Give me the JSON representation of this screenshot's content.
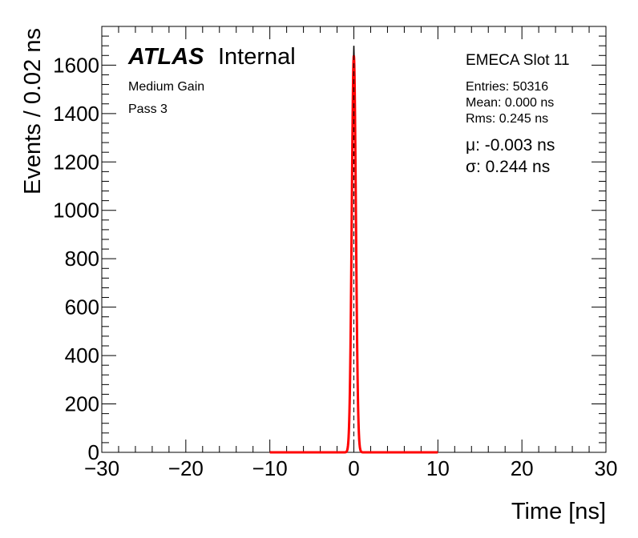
{
  "header": {
    "atlas": "ATLAS",
    "internal": "Internal",
    "line1": "Medium Gain",
    "line2": "Pass 3"
  },
  "stats": {
    "slot": "EMECA Slot 11",
    "entries": "Entries: 50316",
    "mean": "Mean: 0.000 ns",
    "rms": "Rms: 0.245 ns",
    "mu": "μ: -0.003 ns",
    "sigma": "σ: 0.244 ns"
  },
  "colors": {
    "fit": "#ff0000",
    "hist": "#000000"
  },
  "chart_data": {
    "type": "line",
    "xlabel": "Time [ns]",
    "ylabel": "Events / 0.02 ns",
    "xlim": [
      -30,
      30
    ],
    "ylim": [
      0,
      1760
    ],
    "x_ticks": [
      -30,
      -20,
      -10,
      0,
      10,
      20,
      30
    ],
    "x_tick_labels": [
      "−30",
      "−20",
      "−10",
      "0",
      "10",
      "20",
      "30"
    ],
    "y_ticks": [
      0,
      200,
      400,
      600,
      800,
      1000,
      1200,
      1400,
      1600
    ],
    "y_tick_labels": [
      "0",
      "200",
      "400",
      "600",
      "800",
      "1000",
      "1200",
      "1400",
      "1600"
    ],
    "histogram": {
      "bin_width": 0.02,
      "x": [
        -1.0,
        -0.8,
        -0.6,
        -0.5,
        -0.4,
        -0.3,
        -0.2,
        -0.1,
        0.0,
        0.1,
        0.2,
        0.3,
        0.4,
        0.5,
        0.6,
        0.8,
        1.0
      ],
      "y": [
        0,
        2,
        45,
        160,
        420,
        790,
        1180,
        1540,
        1680,
        1520,
        1150,
        750,
        400,
        150,
        40,
        2,
        0
      ]
    },
    "fit": {
      "function": "gaussian",
      "range": [
        -10,
        10
      ],
      "mu": -0.003,
      "sigma": 0.244,
      "peak": 1640
    }
  }
}
